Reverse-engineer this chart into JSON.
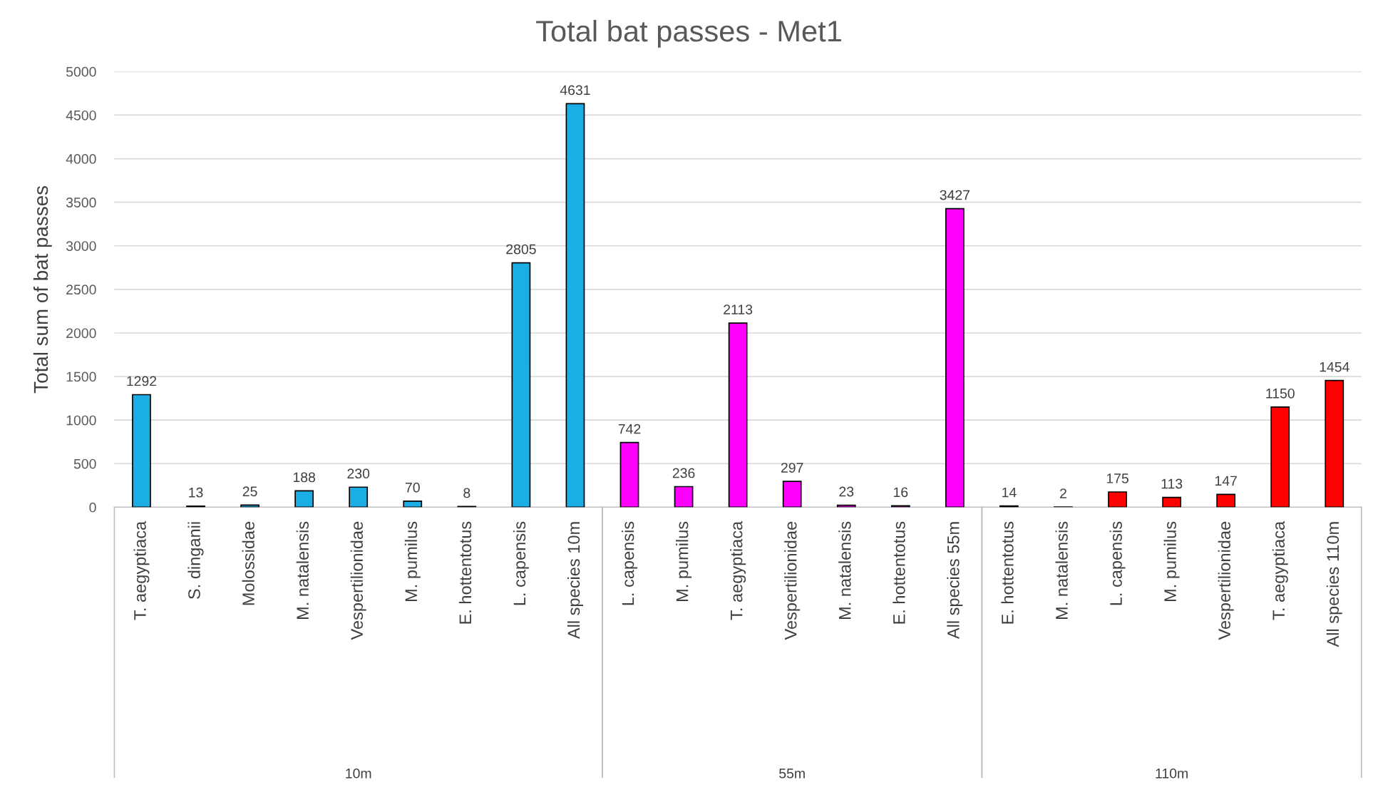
{
  "chart_data": {
    "type": "bar",
    "title": "Total bat passes - Met1",
    "ylabel": "Total sum of bat passes",
    "categories": [
      "T. aegyptiaca",
      "S. dinganii",
      "Molossidae",
      "M. natalensis",
      "Vespertilionidae",
      "M. pumilus",
      "E. hottentotus",
      "L. capensis",
      "All species 10m",
      "L. capensis",
      "M. pumilus",
      "T. aegyptiaca",
      "Vespertilionidae",
      "M. natalensis",
      "E. hottentotus",
      "All species 55m",
      "E. hottentotus",
      "M. natalensis",
      "L. capensis",
      "M. pumilus",
      "Vespertilionidae",
      "T. aegyptiaca",
      "All species 110m"
    ],
    "series": [
      {
        "color": "#1aaee5",
        "values": [
          1292,
          13,
          25,
          188,
          230,
          70,
          8,
          2805,
          4631,
          null,
          null,
          null,
          null,
          null,
          null,
          null,
          null,
          null,
          null,
          null,
          null,
          null,
          null
        ]
      },
      {
        "color": "#ff00ff",
        "values": [
          null,
          null,
          null,
          null,
          null,
          null,
          null,
          null,
          null,
          742,
          236,
          2113,
          297,
          23,
          16,
          3427,
          null,
          null,
          null,
          null,
          null,
          null,
          null
        ]
      },
      {
        "color": "#ff0000",
        "values": [
          null,
          null,
          null,
          null,
          null,
          null,
          null,
          null,
          null,
          null,
          null,
          null,
          null,
          null,
          null,
          null,
          14,
          2,
          175,
          113,
          147,
          1150,
          1454
        ]
      }
    ],
    "ylim": [
      0,
      5000
    ],
    "yticks": [
      0,
      500,
      1000,
      1500,
      2000,
      2500,
      3000,
      3500,
      4000,
      4500,
      5000
    ],
    "annotations": [
      "10m",
      "55m",
      "110m"
    ],
    "grid": "y",
    "data_labels": true,
    "legend": false
  }
}
